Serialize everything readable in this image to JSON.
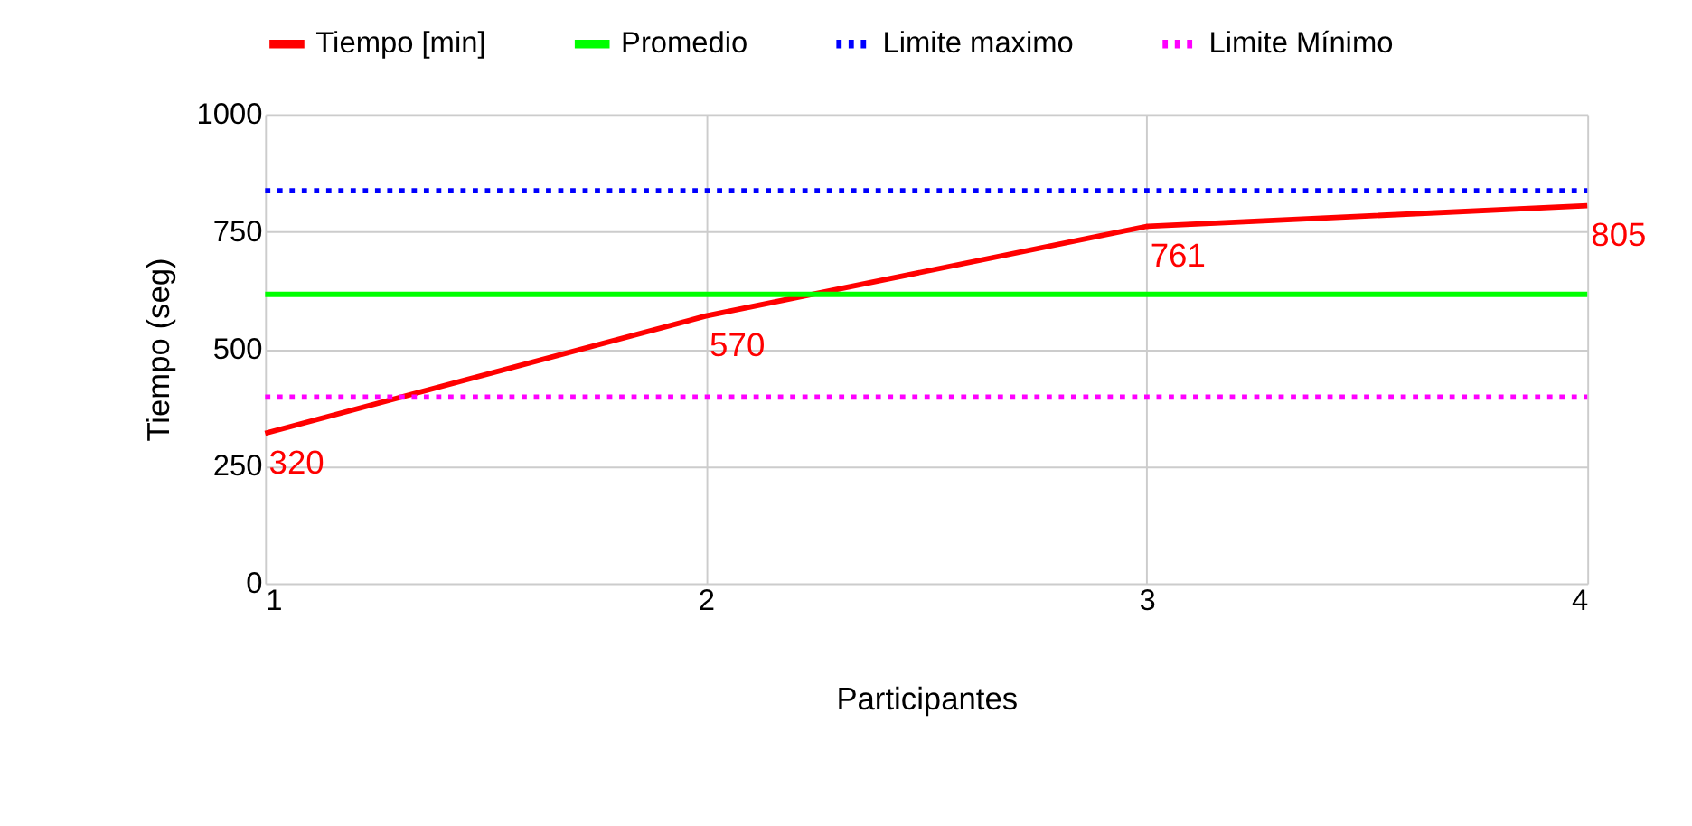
{
  "chart_data": {
    "type": "line",
    "xlabel": "Participantes",
    "ylabel": "Tiempo (seg)",
    "x": [
      1,
      2,
      3,
      4
    ],
    "xlim": [
      1,
      4
    ],
    "xticks": [
      {
        "value": 1,
        "label": "1"
      },
      {
        "value": 2,
        "label": "2"
      },
      {
        "value": 3,
        "label": "3"
      },
      {
        "value": 4,
        "label": "4"
      }
    ],
    "ylim": [
      0,
      1000
    ],
    "yticks": [
      0,
      250,
      500,
      750,
      {
        "value": 1000,
        "label": "1000"
      }
    ],
    "grid": true,
    "legend": "top",
    "marker": "none",
    "series": [
      {
        "name": "Tiempo [min]",
        "color": "#ff0000",
        "values": [
          320,
          570,
          761,
          805
        ],
        "line_style": "solid",
        "value_labels": [
          "320",
          "570",
          "761",
          "805"
        ]
      },
      {
        "name": "Promedio",
        "color": "#00ff00",
        "values": [
          616,
          616,
          616,
          616
        ],
        "line_style": "solid"
      },
      {
        "name": "Limite maximo",
        "color": "#0000ff",
        "values": [
          837,
          837,
          837,
          837
        ],
        "line_style": "dotted"
      },
      {
        "name": "Limite Mínimo",
        "color": "#ff00ff",
        "values": [
          397,
          397,
          397,
          397
        ],
        "line_style": "dotted"
      }
    ]
  }
}
